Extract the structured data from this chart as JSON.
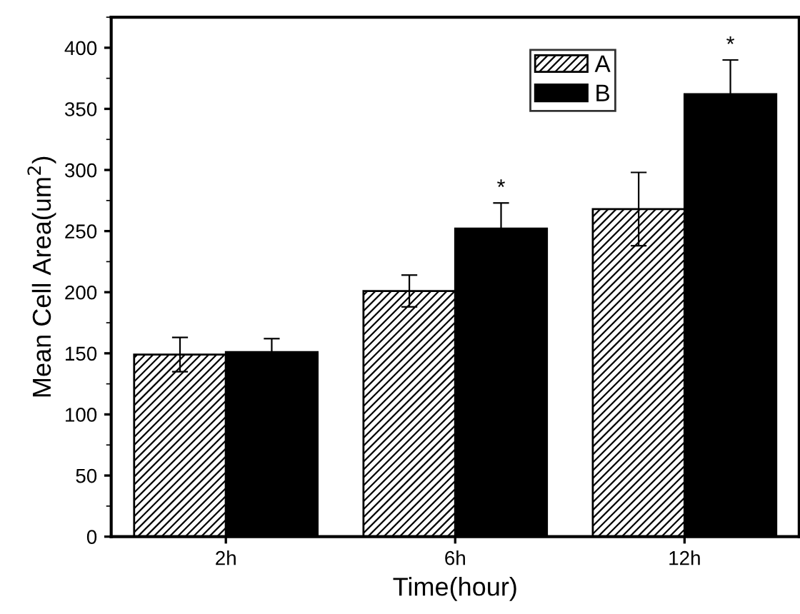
{
  "chart_data": {
    "type": "bar",
    "xlabel": "Time(hour)",
    "ylabel": "Mean Cell Area(um$^{2}$)",
    "categories": [
      "2h",
      "6h",
      "12h"
    ],
    "series": [
      {
        "name": "A",
        "color": "#000000",
        "values": [
          149,
          201,
          268
        ],
        "errors": [
          14,
          13,
          30
        ]
      },
      {
        "name": "B",
        "color": "#000000",
        "values": [
          151,
          252,
          362
        ],
        "errors": [
          11,
          21,
          28
        ]
      }
    ],
    "ylim": [
      0,
      425
    ],
    "yticks": [
      0,
      50,
      100,
      150,
      200,
      250,
      300,
      350,
      400
    ],
    "annotations": [
      {
        "text": "*",
        "x": "6h",
        "y": 252
      },
      {
        "text": "*",
        "x": "12h",
        "y": 362
      }
    ],
    "legend": "top right",
    "grid": false
  }
}
